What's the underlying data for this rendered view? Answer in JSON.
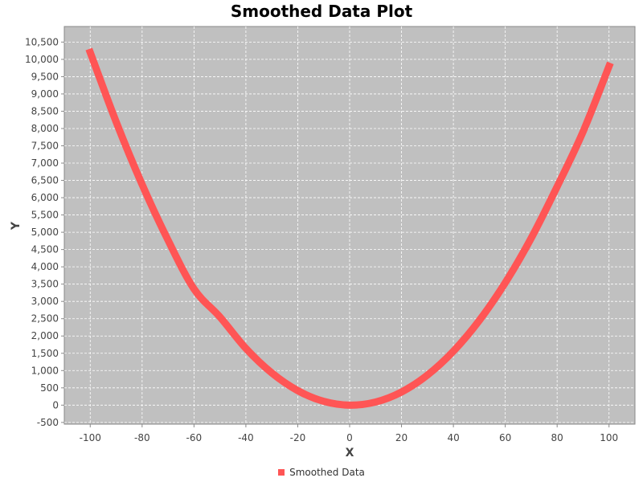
{
  "chart_data": {
    "type": "line",
    "title": "Smoothed Data Plot",
    "xlabel": "X",
    "ylabel": "Y",
    "xlim": [
      -110,
      110
    ],
    "ylim": [
      -550,
      10950
    ],
    "x_ticks": [
      -100,
      -80,
      -60,
      -40,
      -20,
      0,
      20,
      40,
      60,
      80,
      100
    ],
    "x_tick_labels": [
      "-100",
      "-80",
      "-60",
      "-40",
      "-20",
      "0",
      "20",
      "40",
      "60",
      "80",
      "100"
    ],
    "y_ticks": [
      -500,
      0,
      500,
      1000,
      1500,
      2000,
      2500,
      3000,
      3500,
      4000,
      4500,
      5000,
      5500,
      6000,
      6500,
      7000,
      7500,
      8000,
      8500,
      9000,
      9500,
      10000,
      10500
    ],
    "y_tick_labels": [
      "-500",
      "0",
      "500",
      "1,000",
      "1,500",
      "2,000",
      "2,500",
      "3,000",
      "3,500",
      "4,000",
      "4,500",
      "5,000",
      "5,500",
      "6,000",
      "6,500",
      "7,000",
      "7,500",
      "8,000",
      "8,500",
      "9,000",
      "9,500",
      "10,000",
      "10,500"
    ],
    "grid": true,
    "legend_position": "bottom",
    "series": [
      {
        "name": "Smoothed Data",
        "color": "#ff5555",
        "x": [
          -100,
          -90,
          -80,
          -70,
          -60,
          -50,
          -40,
          -30,
          -20,
          -10,
          0,
          10,
          20,
          30,
          40,
          50,
          60,
          70,
          80,
          90,
          100
        ],
        "y": [
          10200,
          8190,
          6380,
          4770,
          3360,
          2550,
          1640,
          930,
          420,
          110,
          0,
          90,
          380,
          870,
          1560,
          2450,
          3540,
          4830,
          6320,
          7910,
          9800
        ]
      }
    ]
  },
  "colors": {
    "plot_background": "#c0c0c0",
    "grid": "#ffffff",
    "series": "#ff5555"
  }
}
